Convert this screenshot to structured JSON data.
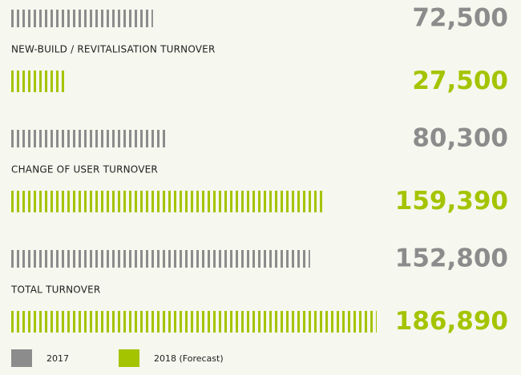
{
  "chart_data": {
    "type": "bar",
    "orientation": "horizontal",
    "categories": [
      "NEW-BUILD / REVITALISATION TURNOVER",
      "CHANGE OF USER TURNOVER",
      "TOTAL TURNOVER"
    ],
    "series": [
      {
        "name": "2017",
        "color": "#8c8c8c",
        "values": [
          72500,
          80300,
          152800
        ],
        "value_labels": [
          "72,500",
          "80,300",
          "152,800"
        ]
      },
      {
        "name": "2018 (Forecast)",
        "color": "#a4c400",
        "values": [
          27500,
          159390,
          186890
        ],
        "value_labels": [
          "27,500",
          "159,390",
          "186,890"
        ]
      }
    ]
  }
}
